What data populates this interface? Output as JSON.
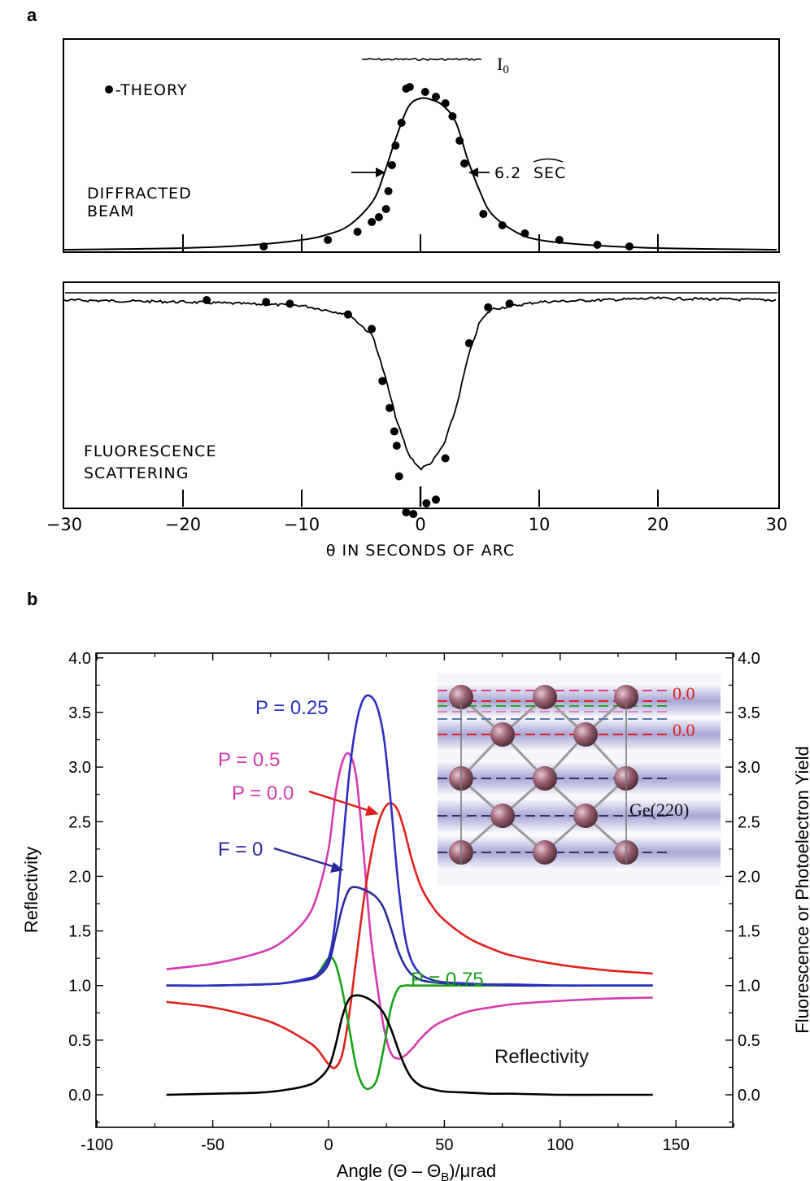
{
  "panel_a": {
    "letter": "a",
    "theory_label": "-THEORY",
    "io_label": "I",
    "io_sub": "0",
    "fwhm_label": "6.2",
    "fwhm_unit": "SEC",
    "diffracted_label": [
      "DIFFRACTED",
      "BEAM"
    ],
    "fluorescence_label": [
      "FLUORESCENCE",
      "SCATTERING"
    ],
    "xlabel": "θ IN SECONDS OF ARC",
    "x_tick_labels": [
      "−30",
      "−20",
      "−10",
      "0",
      "10",
      "20",
      "30"
    ]
  },
  "panel_b": {
    "letter": "b",
    "xlabel": "Angle (Θ – Θ",
    "xlabel_sub": "B",
    "xlabel_tail": ")/μrad",
    "ylabel_left": "Reflectivity",
    "ylabel_right": "Fluorescence or Photoelectron Yield",
    "x_tick_labels": [
      "-100",
      "-50",
      "0",
      "50",
      "100",
      "150"
    ],
    "y_tick_labels": [
      "0.0",
      "0.5",
      "1.0",
      "1.5",
      "2.0",
      "2.5",
      "3.0",
      "3.5",
      "4.0"
    ],
    "curve_labels": {
      "p025": "P = 0.25",
      "p05": "P = 0.5",
      "p00": "P = 0.0",
      "f0": "F = 0",
      "p075": "P = 0.75",
      "refl": "Reflectivity"
    },
    "inset": {
      "label_top": "0.0",
      "label_mid": "0.0",
      "label_ge": "Ge(220)"
    },
    "colors": {
      "p025": "#2b2fc0",
      "p05": "#d63ab0",
      "p00": "#e0201c",
      "f0": "#2a2a9a",
      "p075": "#18a018",
      "refl": "#000000"
    }
  },
  "chart_data": [
    {
      "type": "line",
      "panel": "a (top)",
      "xlabel": "θ IN SECONDS OF ARC",
      "xlim": [
        -30,
        30
      ],
      "series": [
        {
          "name": "DIFFRACTED BEAM",
          "x": [
            -30,
            -20,
            -14,
            -10,
            -8,
            -6,
            -4,
            -3,
            -2,
            -1,
            0,
            1,
            2,
            3,
            4,
            5,
            6,
            8,
            10,
            14,
            20,
            30
          ],
          "values": [
            0.0,
            0.01,
            0.03,
            0.06,
            0.09,
            0.15,
            0.3,
            0.48,
            0.7,
            0.88,
            0.93,
            0.92,
            0.88,
            0.78,
            0.55,
            0.36,
            0.22,
            0.11,
            0.06,
            0.03,
            0.01,
            0.0
          ]
        },
        {
          "name": "THEORY",
          "x": [
            -13.2,
            -7.8,
            -5.3,
            -4.1,
            -3.5,
            -2.9,
            -2.7,
            -2.4,
            -2.1,
            -1.6,
            -1.2,
            -0.9,
            0.4,
            1.3,
            2.1,
            2.7,
            3.3,
            3.7,
            5.3,
            6.9,
            8.8,
            11.7,
            14.9,
            17.6
          ],
          "values": [
            0.02,
            0.06,
            0.11,
            0.17,
            0.2,
            0.25,
            0.36,
            0.52,
            0.64,
            0.78,
            0.99,
            1.0,
            0.97,
            0.94,
            0.9,
            0.82,
            0.67,
            0.53,
            0.22,
            0.15,
            0.1,
            0.06,
            0.03,
            0.02
          ]
        }
      ]
    },
    {
      "type": "line",
      "panel": "a (bottom)",
      "xlabel": "θ IN SECONDS OF ARC",
      "xlim": [
        -30,
        30
      ],
      "series": [
        {
          "name": "FLUORESCENCE SCATTERING",
          "x": [
            -30,
            -20,
            -10,
            -6,
            -4,
            -3,
            -2,
            -1,
            0,
            1,
            2,
            3,
            4,
            5,
            6,
            10,
            20,
            30
          ],
          "values": [
            1.0,
            0.99,
            0.97,
            0.92,
            0.8,
            0.58,
            0.33,
            0.14,
            0.06,
            0.1,
            0.2,
            0.4,
            0.68,
            0.88,
            0.95,
            0.99,
            1.01,
            1.0
          ]
        },
        {
          "name": "THEORY",
          "x": [
            -18,
            -13,
            -11,
            -6.1,
            -4.1,
            -3.2,
            -2.6,
            -2.2,
            -2.0,
            -1.8,
            -1.2,
            -0.6,
            0.5,
            1.3,
            2.1,
            4.1,
            5.7,
            7.5
          ],
          "values": [
            1.0,
            0.99,
            0.98,
            0.92,
            0.84,
            0.55,
            0.4,
            0.27,
            0.19,
            0.02,
            -0.18,
            -0.19,
            -0.13,
            -0.11,
            0.12,
            0.76,
            0.96,
            0.98
          ]
        }
      ]
    },
    {
      "type": "line",
      "panel": "b",
      "xlabel": "Angle (Θ – ΘB)/μrad",
      "ylabel": "Reflectivity",
      "ylabel_right": "Fluorescence or Photoelectron Yield",
      "xlim": [
        -100,
        175
      ],
      "ylim": [
        -0.25,
        4.0
      ],
      "x": [
        -70,
        -50,
        -30,
        -20,
        -10,
        -5,
        0,
        3,
        6,
        9,
        12,
        15,
        18,
        21,
        24,
        27,
        30,
        33,
        36,
        40,
        45,
        50,
        60,
        70,
        80,
        100,
        120,
        140
      ],
      "series": [
        {
          "name": "Reflectivity",
          "values": [
            0.0,
            0.01,
            0.02,
            0.04,
            0.08,
            0.13,
            0.25,
            0.45,
            0.72,
            0.88,
            0.91,
            0.9,
            0.87,
            0.82,
            0.74,
            0.6,
            0.42,
            0.26,
            0.15,
            0.08,
            0.05,
            0.03,
            0.02,
            0.01,
            0.01,
            0.0,
            0.0,
            0.0
          ]
        },
        {
          "name": "P = 0.25",
          "values": [
            1.0,
            1.0,
            1.01,
            1.02,
            1.06,
            1.1,
            1.25,
            1.6,
            2.25,
            2.95,
            3.4,
            3.62,
            3.65,
            3.55,
            3.25,
            2.65,
            1.95,
            1.45,
            1.22,
            1.1,
            1.05,
            1.03,
            1.02,
            1.01,
            1.01,
            1.0,
            1.0,
            1.0
          ]
        },
        {
          "name": "P = 0.5",
          "values": [
            1.15,
            1.2,
            1.3,
            1.4,
            1.6,
            1.82,
            2.25,
            2.75,
            3.05,
            3.12,
            2.9,
            2.25,
            1.5,
            1.0,
            0.6,
            0.38,
            0.33,
            0.36,
            0.42,
            0.52,
            0.62,
            0.68,
            0.76,
            0.8,
            0.83,
            0.86,
            0.88,
            0.89
          ]
        },
        {
          "name": "P = 0.0",
          "values": [
            0.85,
            0.8,
            0.7,
            0.62,
            0.5,
            0.42,
            0.28,
            0.25,
            0.38,
            0.75,
            1.25,
            1.75,
            2.15,
            2.45,
            2.62,
            2.67,
            2.6,
            2.4,
            2.15,
            1.9,
            1.72,
            1.6,
            1.44,
            1.34,
            1.27,
            1.19,
            1.14,
            1.11
          ]
        },
        {
          "name": "F = 0",
          "values": [
            1.0,
            1.0,
            1.01,
            1.02,
            1.05,
            1.08,
            1.2,
            1.45,
            1.72,
            1.88,
            1.9,
            1.88,
            1.85,
            1.8,
            1.7,
            1.52,
            1.32,
            1.18,
            1.1,
            1.05,
            1.03,
            1.02,
            1.01,
            1.01,
            1.0,
            1.0,
            1.0,
            1.0
          ]
        },
        {
          "name": "P = 0.75",
          "values": [
            1.0,
            1.0,
            1.01,
            1.02,
            1.06,
            1.1,
            1.25,
            1.2,
            0.95,
            0.6,
            0.25,
            0.08,
            0.06,
            0.15,
            0.45,
            0.8,
            0.97,
            1.0,
            1.0,
            1.0,
            1.0,
            1.0,
            1.0,
            1.0,
            1.0,
            1.0,
            1.0,
            1.0
          ]
        }
      ]
    }
  ]
}
